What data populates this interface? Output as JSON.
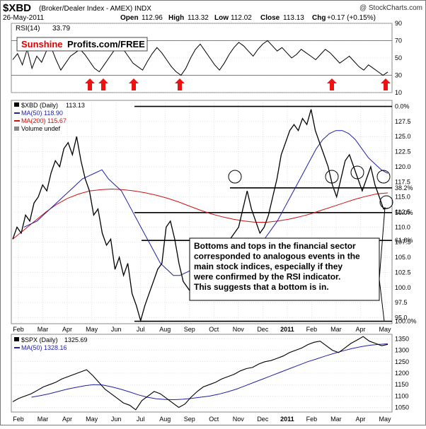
{
  "header": {
    "symbol": "$XBD",
    "description": "(Broker/Dealer Index - AMEX) INDX",
    "source": "@ StockCharts.com",
    "date": "26-May-2011",
    "open_label": "Open",
    "open": "112.96",
    "high_label": "High",
    "high": "113.32",
    "low_label": "Low",
    "low": "112.02",
    "close_label": "Close",
    "close": "113.13",
    "chg_label": "Chg",
    "chg": "+0.17 (+0.15%)"
  },
  "colors": {
    "price_line": "#000000",
    "ma50": "#1f1fa8",
    "ma200": "#d01010",
    "arrow": "#ee1111",
    "logo_red": "#e00000",
    "grid": "#c8c8c8"
  },
  "chart_data": [
    {
      "type": "line",
      "panel": "rsi",
      "legend": {
        "label": "RSI(14)",
        "value": "33.79"
      },
      "ylim": [
        10,
        90
      ],
      "y_ticks": [
        "90",
        "70",
        "50",
        "30",
        "10"
      ],
      "reference_lines": [
        70,
        30
      ],
      "y": [
        48,
        55,
        42,
        60,
        38,
        52,
        45,
        58,
        62,
        48,
        36,
        44,
        52,
        56,
        60,
        54,
        46,
        38,
        34,
        42,
        50,
        58,
        64,
        60,
        52,
        44,
        40,
        36,
        46,
        55,
        62,
        56,
        48,
        40,
        34,
        30,
        38,
        50,
        60,
        66,
        58,
        50,
        42,
        36,
        44,
        54,
        62,
        68,
        64,
        58,
        52,
        60,
        66,
        70,
        64,
        58,
        62,
        56,
        50,
        54,
        60,
        56,
        52,
        48,
        54,
        60,
        56,
        50,
        44,
        48,
        52,
        46,
        40,
        36,
        42,
        38,
        34,
        30,
        33.79
      ]
    },
    {
      "type": "line",
      "panel": "xbd",
      "legend": [
        {
          "label": "$XBD (Daily)",
          "value": "113.13"
        },
        {
          "label": "MA(50)",
          "value": "118.90"
        },
        {
          "label": "MA(200)",
          "value": "115.67"
        },
        {
          "label": "Volume undef",
          "value": ""
        }
      ],
      "ylim": [
        94,
        131
      ],
      "y_ticks": [
        "127.5",
        "125.0",
        "122.5",
        "120.0",
        "117.5",
        "115.0",
        "112.5",
        "110.0",
        "107.5",
        "105.0",
        "102.5",
        "100.0",
        "97.5",
        "95.0"
      ],
      "x_labels": [
        "Feb",
        "Mar",
        "Apr",
        "May",
        "Jun",
        "Jul",
        "Aug",
        "Sep",
        "Oct",
        "Nov",
        "Dec",
        "2011",
        "Feb",
        "Mar",
        "Apr",
        "May"
      ],
      "fib_levels": [
        {
          "value": 130.0,
          "label": "0.0%"
        },
        {
          "value": 116.5,
          "label": "38.2%"
        },
        {
          "value": 112.4,
          "label": "50.0%"
        },
        {
          "value": 107.8,
          "label": "61.8%"
        },
        {
          "value": 94.4,
          "label": "100.0%"
        }
      ],
      "series": [
        {
          "name": "$XBD (Daily)",
          "y": [
            108,
            110,
            109,
            112,
            111,
            114,
            115,
            117,
            116,
            119,
            121,
            120,
            123,
            124,
            122,
            125,
            121,
            118,
            116,
            112,
            113,
            109,
            107,
            108,
            103,
            105,
            102,
            104,
            99,
            97,
            94.5,
            97,
            99,
            101,
            103,
            104,
            110,
            111,
            108,
            104,
            101,
            100,
            99,
            98,
            100,
            101,
            103,
            102,
            104,
            106,
            105,
            108,
            109,
            110,
            113,
            116,
            113,
            111,
            109,
            110,
            112,
            115,
            118,
            122,
            124,
            126,
            127,
            126,
            128,
            127,
            129.5,
            126,
            124,
            122,
            120,
            117,
            115,
            118,
            121,
            122,
            120,
            118,
            116,
            118,
            120,
            117,
            115,
            113,
            113.13
          ]
        },
        {
          "name": "MA(50)",
          "y": [
            110,
            110.5,
            111,
            112,
            113,
            114,
            115,
            116,
            117,
            118,
            118.5,
            119,
            119.5,
            118,
            117,
            116,
            114,
            112,
            110,
            108,
            106,
            104,
            103,
            102,
            102,
            102.5,
            103,
            103,
            103,
            103.5,
            104,
            104.5,
            105,
            105.5,
            106,
            107,
            107.5,
            108,
            109.5,
            111,
            113,
            115,
            117,
            119,
            121,
            123,
            124.5,
            125.5,
            126,
            126,
            125.5,
            124.5,
            123,
            121.5,
            120.5,
            119.5,
            118.9
          ]
        },
        {
          "name": "MA(200)",
          "y": [
            108,
            109.5,
            111,
            112.5,
            113.8,
            114.8,
            115.5,
            116,
            116.2,
            116.3,
            116.2,
            116,
            115.7,
            115.3,
            114.8,
            114.2,
            113.5,
            112.8,
            112.2,
            111.7,
            111.3,
            111,
            110.8,
            110.8,
            111,
            111.3,
            111.7,
            112.2,
            112.8,
            113.4,
            114,
            114.6,
            115.1,
            115.5,
            115.67
          ]
        }
      ],
      "annotation": "Bottoms and tops in the financial sector corresponded to analogous events in the main stock indices, especially if they were confirmed by the RSI indicator. This suggests that a bottom is in."
    },
    {
      "type": "line",
      "panel": "spx",
      "legend": [
        {
          "label": "$SPX (Daily)",
          "value": "1325.69"
        },
        {
          "label": "MA(50)",
          "value": "1328.16"
        }
      ],
      "ylim": [
        1030,
        1370
      ],
      "y_ticks": [
        "1350",
        "1300",
        "1250",
        "1200",
        "1150",
        "1100",
        "1050"
      ],
      "x_labels": [
        "Feb",
        "Mar",
        "Apr",
        "May",
        "Jun",
        "Jul",
        "Aug",
        "Sep",
        "Oct",
        "Nov",
        "Dec",
        "2011",
        "Feb",
        "Mar",
        "Apr",
        "May"
      ],
      "series": [
        {
          "name": "$SPX (Daily)",
          "y": [
            1075,
            1090,
            1100,
            1110,
            1125,
            1140,
            1150,
            1160,
            1175,
            1185,
            1195,
            1205,
            1215,
            1190,
            1160,
            1130,
            1110,
            1090,
            1070,
            1060,
            1040,
            1080,
            1100,
            1120,
            1110,
            1090,
            1070,
            1050,
            1065,
            1095,
            1120,
            1140,
            1150,
            1160,
            1175,
            1185,
            1195,
            1210,
            1220,
            1225,
            1240,
            1250,
            1255,
            1265,
            1275,
            1290,
            1300,
            1310,
            1325,
            1335,
            1340,
            1320,
            1300,
            1290,
            1310,
            1330,
            1345,
            1360,
            1340,
            1330,
            1320,
            1325.69
          ]
        },
        {
          "name": "MA(50)",
          "y": [
            1095,
            1102,
            1110,
            1120,
            1130,
            1138,
            1145,
            1150,
            1148,
            1140,
            1130,
            1118,
            1105,
            1095,
            1088,
            1085,
            1084,
            1086,
            1090,
            1095,
            1100,
            1108,
            1118,
            1130,
            1145,
            1160,
            1175,
            1190,
            1205,
            1220,
            1235,
            1250,
            1262,
            1275,
            1287,
            1298,
            1308,
            1316,
            1322,
            1326,
            1328.16
          ]
        }
      ]
    }
  ],
  "logo": {
    "part1": "Sunshine",
    "part2": "Profits.com/FREE"
  }
}
